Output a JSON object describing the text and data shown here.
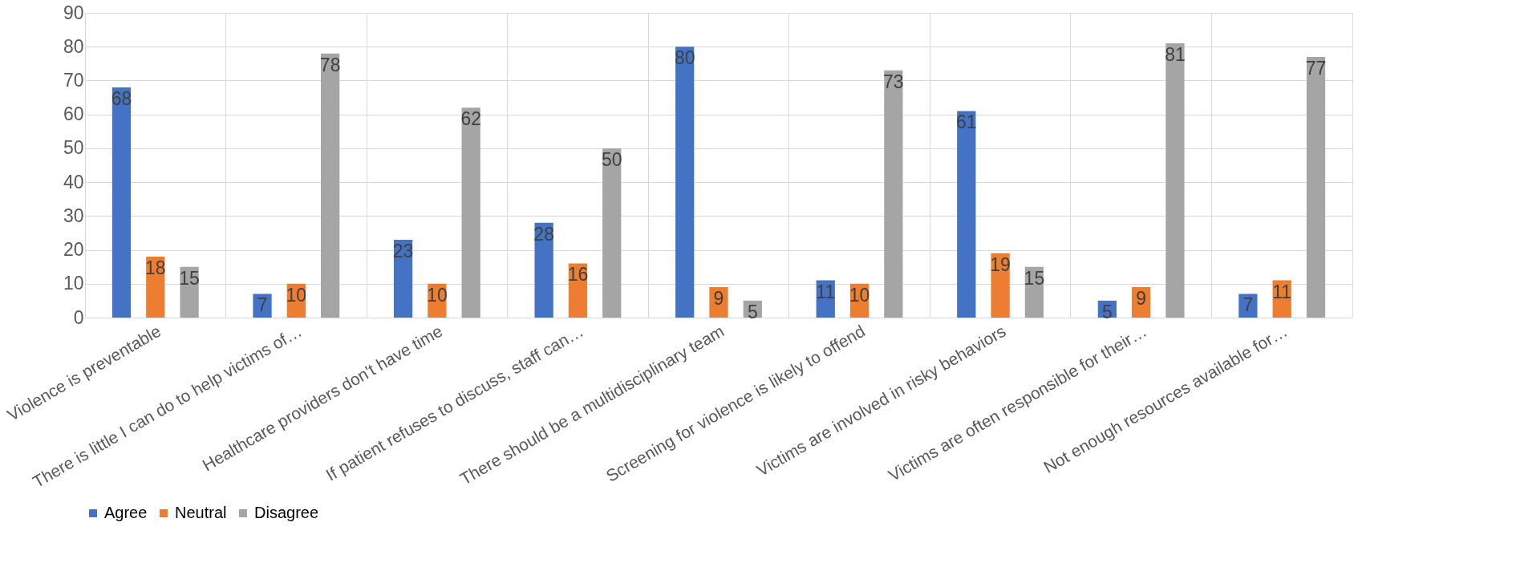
{
  "chart_data": {
    "type": "bar",
    "categories": [
      "Violence is preventable",
      "There is little I can do to help victims of…",
      "Healthcare providers don't have time",
      "If patient refuses to discuss, staff can…",
      "There should be a multidisciplinary team",
      "Screening for violence is likely to offend",
      "Victims are involved in risky behaviors",
      "Victims are often responsible for their…",
      "Not enough resources available for…"
    ],
    "series": [
      {
        "name": "Agree",
        "color": "#4472c4",
        "values": [
          68,
          7,
          23,
          28,
          80,
          11,
          61,
          5,
          7
        ]
      },
      {
        "name": "Neutral",
        "color": "#ed7d31",
        "values": [
          18,
          10,
          10,
          16,
          9,
          10,
          19,
          9,
          11
        ]
      },
      {
        "name": "Disagree",
        "color": "#a5a5a5",
        "values": [
          15,
          78,
          62,
          50,
          5,
          73,
          15,
          81,
          77
        ]
      }
    ],
    "ylim": [
      0,
      90
    ],
    "yticks": [
      0,
      10,
      20,
      30,
      40,
      50,
      60,
      70,
      80,
      90
    ],
    "grid": true,
    "legend": "bottom",
    "data_labels": true
  }
}
